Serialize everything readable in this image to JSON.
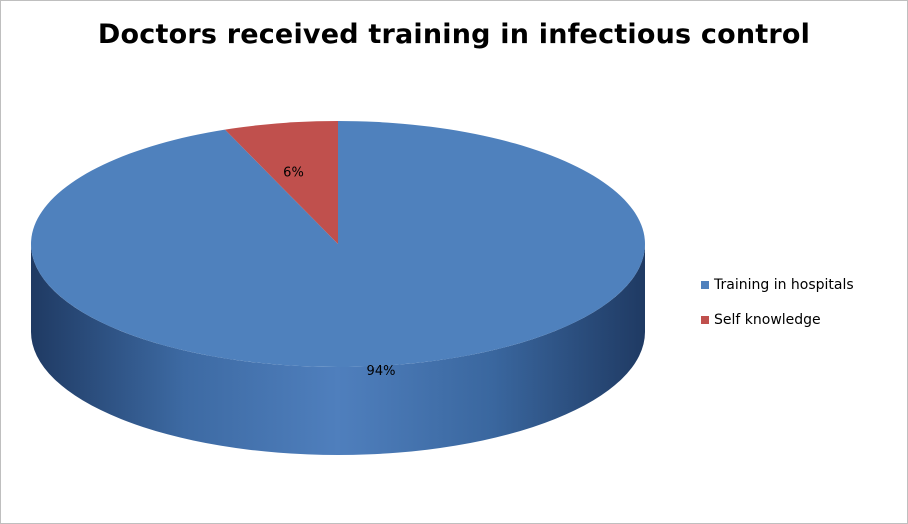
{
  "chart_data": {
    "type": "pie",
    "title": "Doctors received training in infectious control",
    "categories": [
      "Training in hospitals",
      "Self knowledge"
    ],
    "values": [
      94,
      6
    ],
    "data_labels": [
      "94%",
      "6%"
    ],
    "colors": [
      "#4f81bd",
      "#c0504d"
    ],
    "legend_position": "right",
    "style": "3d"
  }
}
